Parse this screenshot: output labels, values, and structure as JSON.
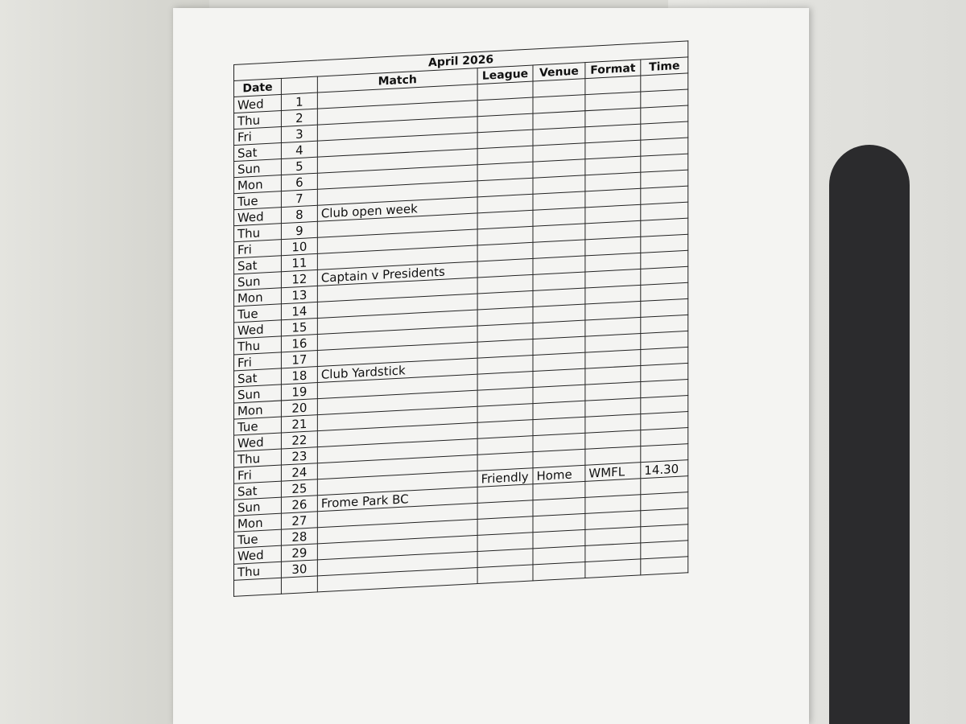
{
  "title": "April 2026",
  "headers": [
    "Date",
    "Match",
    "League",
    "Venue",
    "Format",
    "Time"
  ],
  "rows": [
    {
      "day": "Wed",
      "date": 1
    },
    {
      "day": "Thu",
      "date": 2
    },
    {
      "day": "Fri",
      "date": 3
    },
    {
      "day": "Sat",
      "date": 4
    },
    {
      "day": "Sun",
      "date": 5
    },
    {
      "day": "Mon",
      "date": 6
    },
    {
      "day": "Tue",
      "date": 7
    },
    {
      "day": "Wed",
      "date": 8,
      "match": "Club open week"
    },
    {
      "day": "Thu",
      "date": 9
    },
    {
      "day": "Fri",
      "date": 10
    },
    {
      "day": "Sat",
      "date": 11
    },
    {
      "day": "Sun",
      "date": 12,
      "match": "Captain v Presidents"
    },
    {
      "day": "Mon",
      "date": 13
    },
    {
      "day": "Tue",
      "date": 14
    },
    {
      "day": "Wed",
      "date": 15
    },
    {
      "day": "Thu",
      "date": 16
    },
    {
      "day": "Fri",
      "date": 17
    },
    {
      "day": "Sat",
      "date": 18,
      "match": "Club Yardstick"
    },
    {
      "day": "Sun",
      "date": 19
    },
    {
      "day": "Mon",
      "date": 20
    },
    {
      "day": "Tue",
      "date": 21
    },
    {
      "day": "Wed",
      "date": 22
    },
    {
      "day": "Thu",
      "date": 23
    },
    {
      "day": "Fri",
      "date": 24
    },
    {
      "day": "Sat",
      "date": 25,
      "league": "Friendly",
      "venue": "Home",
      "format": "WMFL",
      "time": "14.30"
    },
    {
      "day": "Sun",
      "date": 26,
      "match": "Frome Park BC"
    },
    {
      "day": "Mon",
      "date": 27
    },
    {
      "day": "Tue",
      "date": 28
    },
    {
      "day": "Wed",
      "date": 29
    },
    {
      "day": "Thu",
      "date": 30
    }
  ]
}
